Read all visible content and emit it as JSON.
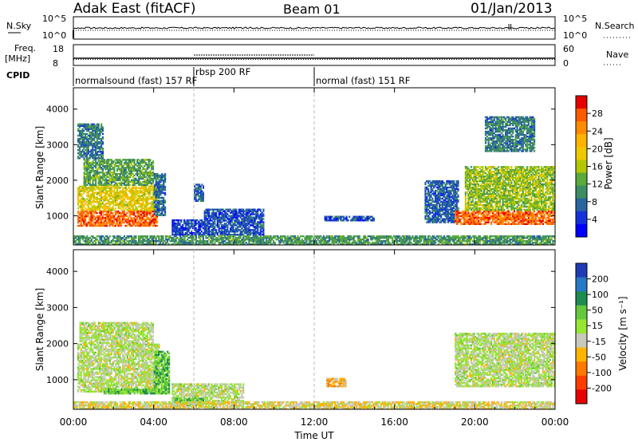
{
  "header": {
    "station": "Adak East (fitACF)",
    "beam": "Beam 01",
    "date": "01/Jan/2013"
  },
  "status_panels": {
    "nsky_label": "N.Sky",
    "nsearch_label": "N.Search",
    "noise_ticks": [
      "10^5",
      "10^0"
    ],
    "freq_label": "Freq.",
    "freq_unit": "[MHz]",
    "freq_ticks": [
      "18",
      "8"
    ],
    "nave_label": "Nave",
    "nave_ticks": [
      "60",
      "0"
    ],
    "cpid_label": "CPID",
    "cpid_segments": [
      {
        "name": "normalsound (fast) 157 RF",
        "start_hour": 0,
        "end_hour": 6
      },
      {
        "name": "rbsp 200 RF",
        "start_hour": 6,
        "end_hour": 12
      },
      {
        "name": "normal (fast) 151 RF",
        "start_hour": 12,
        "end_hour": 24
      }
    ]
  },
  "axes": {
    "xlabel": "Time UT",
    "x_ticks": [
      "00:00",
      "04:00",
      "08:00",
      "12:00",
      "16:00",
      "20:00",
      "00:00"
    ],
    "ylabel": "Slant Range [km]",
    "y_ticks": [
      "1000",
      "2000",
      "3000",
      "4000"
    ]
  },
  "power_colorbar": {
    "label": "Power [dB]",
    "ticks": [
      "28",
      "24",
      "20",
      "16",
      "12",
      "8",
      "4"
    ],
    "colors": [
      "#e60000",
      "#ff5a00",
      "#ff8c00",
      "#ffb400",
      "#f0c800",
      "#b4c800",
      "#5aaa3c",
      "#3c8c64",
      "#2864a0",
      "#1432dc",
      "#0000ff"
    ]
  },
  "velocity_colorbar": {
    "label": "Velocity [m s⁻¹]",
    "ticks": [
      "200",
      "100",
      "50",
      "15",
      "-15",
      "-50",
      "-100",
      "-200"
    ],
    "colors": [
      "#1e3cb4",
      "#2878c8",
      "#1e8c50",
      "#64c83c",
      "#96e632",
      "#c8c8be",
      "#ffb400",
      "#ff7800",
      "#ff3c00",
      "#e60000"
    ]
  },
  "chart_data": [
    {
      "type": "heatmap",
      "title": "",
      "xlabel": "Time UT",
      "ylabel": "Slant Range [km]",
      "colorbar_label": "Power [dB]",
      "xlim_hours": [
        0,
        24
      ],
      "ylim_km": [
        180,
        4600
      ],
      "clim": [
        0,
        32
      ],
      "regions": [
        {
          "t0": 0.2,
          "t1": 4.2,
          "r0": 700,
          "r1": 1150,
          "value": 27
        },
        {
          "t0": 0.2,
          "t1": 4.3,
          "r0": 1150,
          "r1": 1850,
          "value": 18
        },
        {
          "t0": 0.5,
          "t1": 4.0,
          "r0": 1850,
          "r1": 2600,
          "value": 12
        },
        {
          "t0": 0.2,
          "t1": 1.5,
          "r0": 2600,
          "r1": 3600,
          "value": 9
        },
        {
          "t0": 4.0,
          "t1": 4.6,
          "r0": 1000,
          "r1": 2200,
          "value": 8
        },
        {
          "t0": 4.9,
          "t1": 6.5,
          "r0": 450,
          "r1": 900,
          "value": 5
        },
        {
          "t0": 6.5,
          "t1": 9.5,
          "r0": 450,
          "r1": 1200,
          "value": 6
        },
        {
          "t0": 6.0,
          "t1": 6.5,
          "r0": 1400,
          "r1": 1900,
          "value": 7
        },
        {
          "t0": 12.5,
          "t1": 15.0,
          "r0": 850,
          "r1": 1000,
          "value": 6
        },
        {
          "t0": 17.5,
          "t1": 19.2,
          "r0": 800,
          "r1": 2000,
          "value": 7
        },
        {
          "t0": 19.0,
          "t1": 24.0,
          "r0": 750,
          "r1": 1150,
          "value": 27
        },
        {
          "t0": 19.5,
          "t1": 24.0,
          "r0": 1150,
          "r1": 2400,
          "value": 15
        },
        {
          "t0": 20.5,
          "t1": 23.0,
          "r0": 2800,
          "r1": 3800,
          "value": 9
        },
        {
          "t0": 0.0,
          "t1": 24.0,
          "r0": 180,
          "r1": 450,
          "value": 11
        }
      ]
    },
    {
      "type": "heatmap",
      "title": "",
      "xlabel": "Time UT",
      "ylabel": "Slant Range [km]",
      "colorbar_label": "Velocity [m s⁻¹]",
      "xlim_hours": [
        0,
        24
      ],
      "ylim_km": [
        180,
        4600
      ],
      "clim": [
        -200,
        200
      ],
      "regions": [
        {
          "t0": 0.2,
          "t1": 4.3,
          "r0": 650,
          "r1": 2000,
          "value": 0
        },
        {
          "t0": 0.3,
          "t1": 4.0,
          "r0": 2000,
          "r1": 2600,
          "value": 0
        },
        {
          "t0": 1.5,
          "t1": 4.3,
          "r0": 600,
          "r1": 750,
          "value": 60
        },
        {
          "t0": 4.0,
          "t1": 4.8,
          "r0": 600,
          "r1": 1800,
          "value": 60
        },
        {
          "t0": 4.9,
          "t1": 8.5,
          "r0": 350,
          "r1": 900,
          "value": 0
        },
        {
          "t0": 5.0,
          "t1": 6.5,
          "r0": 250,
          "r1": 500,
          "value": 60
        },
        {
          "t0": 12.6,
          "t1": 13.6,
          "r0": 800,
          "r1": 1050,
          "value": -60
        },
        {
          "t0": 19.0,
          "t1": 24.0,
          "r0": 800,
          "r1": 2300,
          "value": 0
        },
        {
          "t0": 0.0,
          "t1": 24.0,
          "r0": 180,
          "r1": 400,
          "value": -30
        }
      ]
    }
  ]
}
